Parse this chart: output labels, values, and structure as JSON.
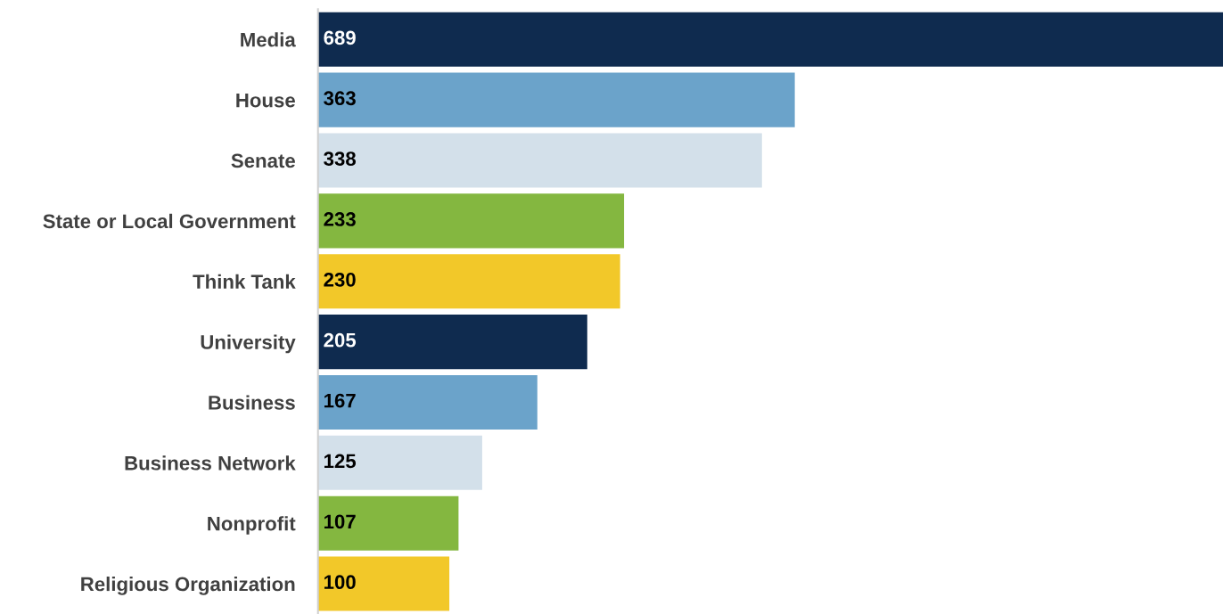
{
  "chart_data": {
    "type": "bar",
    "orientation": "horizontal",
    "data_labels": true,
    "grid": false,
    "legend": false,
    "tick_labels": "y",
    "categories": [
      "Media",
      "House",
      "Senate",
      "State or Local Government",
      "Think Tank",
      "University",
      "Business",
      "Business Network",
      "Nonprofit",
      "Religious Organization"
    ],
    "values": [
      689,
      363,
      338,
      233,
      230,
      205,
      167,
      125,
      107,
      100
    ],
    "colors": [
      "#0f2b4f",
      "#6ba3ca",
      "#d3e0ea",
      "#84b740",
      "#f2c829",
      "#0f2b4f",
      "#6ba3ca",
      "#d3e0ea",
      "#84b740",
      "#f2c829"
    ]
  }
}
